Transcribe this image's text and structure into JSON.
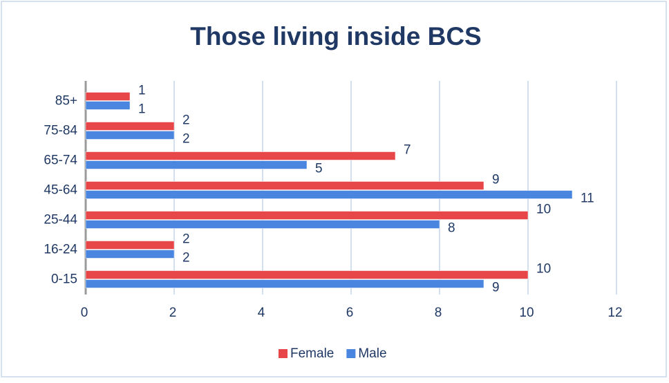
{
  "chart_data": {
    "type": "bar",
    "orientation": "horizontal",
    "title": "Those living inside BCS",
    "categories": [
      "85+",
      "75-84",
      "65-74",
      "45-64",
      "25-44",
      "16-24",
      "0-15"
    ],
    "series": [
      {
        "name": "Female",
        "color": "#e8474a",
        "values": [
          1,
          2,
          7,
          9,
          10,
          2,
          10
        ]
      },
      {
        "name": "Male",
        "color": "#4a86e0",
        "values": [
          1,
          2,
          5,
          11,
          8,
          2,
          9
        ]
      }
    ],
    "xlim": [
      0,
      12
    ],
    "xticks": [
      0,
      2,
      4,
      6,
      8,
      10,
      12
    ],
    "grid": true,
    "legend": "bottom"
  }
}
